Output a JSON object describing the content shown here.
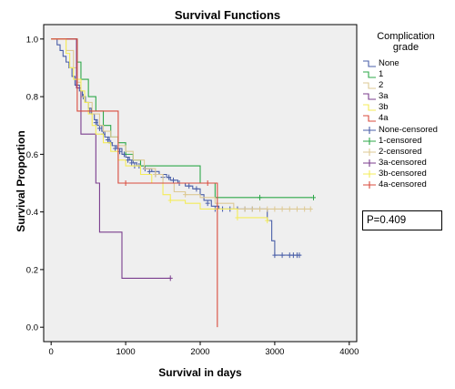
{
  "chart_data": {
    "type": "line",
    "title": "Survival Functions",
    "xlabel": "Survival in days",
    "ylabel": "Survival Proportion",
    "xlim": [
      -100,
      4100
    ],
    "ylim": [
      -0.05,
      1.05
    ],
    "x_ticks": [
      "0",
      "1000",
      "2000",
      "3000",
      "4000"
    ],
    "x_tick_values": [
      0,
      1000,
      2000,
      3000,
      4000
    ],
    "y_ticks": [
      "0.0",
      "0.2",
      "0.4",
      "0.6",
      "0.8",
      "1.0"
    ],
    "y_tick_values": [
      0.0,
      0.2,
      0.4,
      0.6,
      0.8,
      1.0
    ],
    "legend_title": [
      "Complication",
      "grade"
    ],
    "legend_position": "right",
    "background": "#efefef",
    "series": [
      {
        "name": "None",
        "color": "#4a5fa8",
        "steps": [
          [
            0,
            1.0
          ],
          [
            80,
            0.98
          ],
          [
            120,
            0.96
          ],
          [
            160,
            0.94
          ],
          [
            200,
            0.92
          ],
          [
            240,
            0.9
          ],
          [
            280,
            0.87
          ],
          [
            320,
            0.84
          ],
          [
            380,
            0.82
          ],
          [
            420,
            0.8
          ],
          [
            460,
            0.78
          ],
          [
            500,
            0.76
          ],
          [
            540,
            0.74
          ],
          [
            580,
            0.72
          ],
          [
            620,
            0.7
          ],
          [
            680,
            0.68
          ],
          [
            720,
            0.66
          ],
          [
            780,
            0.64
          ],
          [
            820,
            0.63
          ],
          [
            880,
            0.62
          ],
          [
            950,
            0.6
          ],
          [
            1000,
            0.59
          ],
          [
            1050,
            0.58
          ],
          [
            1100,
            0.57
          ],
          [
            1150,
            0.56
          ],
          [
            1250,
            0.55
          ],
          [
            1350,
            0.54
          ],
          [
            1450,
            0.53
          ],
          [
            1550,
            0.52
          ],
          [
            1600,
            0.51
          ],
          [
            1700,
            0.5
          ],
          [
            1800,
            0.49
          ],
          [
            1900,
            0.48
          ],
          [
            2000,
            0.46
          ],
          [
            2050,
            0.44
          ],
          [
            2150,
            0.42
          ],
          [
            2250,
            0.41
          ],
          [
            2900,
            0.37
          ],
          [
            2960,
            0.3
          ],
          [
            3000,
            0.25
          ],
          [
            3350,
            0.25
          ]
        ],
        "censored": [
          [
            430,
            0.8
          ],
          [
            520,
            0.75
          ],
          [
            600,
            0.71
          ],
          [
            650,
            0.69
          ],
          [
            700,
            0.67
          ],
          [
            760,
            0.65
          ],
          [
            800,
            0.64
          ],
          [
            860,
            0.62
          ],
          [
            920,
            0.61
          ],
          [
            980,
            0.6
          ],
          [
            1030,
            0.58
          ],
          [
            1080,
            0.57
          ],
          [
            1120,
            0.56
          ],
          [
            1180,
            0.56
          ],
          [
            1260,
            0.55
          ],
          [
            1320,
            0.54
          ],
          [
            1400,
            0.53
          ],
          [
            1500,
            0.52
          ],
          [
            1580,
            0.52
          ],
          [
            1640,
            0.51
          ],
          [
            1720,
            0.5
          ],
          [
            1850,
            0.49
          ],
          [
            1950,
            0.48
          ],
          [
            2100,
            0.43
          ],
          [
            2200,
            0.41
          ],
          [
            2300,
            0.41
          ],
          [
            2400,
            0.41
          ],
          [
            2500,
            0.41
          ],
          [
            2600,
            0.41
          ],
          [
            2700,
            0.41
          ],
          [
            2800,
            0.41
          ],
          [
            3000,
            0.25
          ],
          [
            3100,
            0.25
          ],
          [
            3200,
            0.25
          ],
          [
            3250,
            0.25
          ],
          [
            3300,
            0.25
          ],
          [
            3330,
            0.25
          ]
        ]
      },
      {
        "name": "1",
        "color": "#2ea84a",
        "steps": [
          [
            0,
            1.0
          ],
          [
            350,
            0.92
          ],
          [
            400,
            0.86
          ],
          [
            500,
            0.8
          ],
          [
            600,
            0.75
          ],
          [
            700,
            0.7
          ],
          [
            800,
            0.66
          ],
          [
            900,
            0.64
          ],
          [
            1000,
            0.6
          ],
          [
            1100,
            0.58
          ],
          [
            1200,
            0.56
          ],
          [
            1650,
            0.56
          ],
          [
            2000,
            0.5
          ],
          [
            2200,
            0.45
          ],
          [
            3500,
            0.45
          ]
        ],
        "censored": [
          [
            1200,
            0.56
          ],
          [
            2800,
            0.45
          ],
          [
            3520,
            0.45
          ]
        ]
      },
      {
        "name": "2",
        "color": "#ddc994",
        "steps": [
          [
            0,
            1.0
          ],
          [
            200,
            0.96
          ],
          [
            300,
            0.9
          ],
          [
            350,
            0.85
          ],
          [
            400,
            0.8
          ],
          [
            450,
            0.78
          ],
          [
            550,
            0.74
          ],
          [
            650,
            0.7
          ],
          [
            700,
            0.68
          ],
          [
            800,
            0.66
          ],
          [
            900,
            0.63
          ],
          [
            1000,
            0.61
          ],
          [
            1100,
            0.58
          ],
          [
            1250,
            0.55
          ],
          [
            1400,
            0.53
          ],
          [
            1500,
            0.5
          ],
          [
            1650,
            0.47
          ],
          [
            1800,
            0.46
          ],
          [
            2000,
            0.45
          ],
          [
            2200,
            0.43
          ],
          [
            2450,
            0.41
          ],
          [
            3500,
            0.41
          ]
        ],
        "censored": [
          [
            1400,
            0.53
          ],
          [
            1800,
            0.46
          ],
          [
            2600,
            0.41
          ],
          [
            2700,
            0.41
          ],
          [
            2800,
            0.41
          ],
          [
            2900,
            0.41
          ],
          [
            3000,
            0.41
          ],
          [
            3100,
            0.41
          ],
          [
            3200,
            0.41
          ],
          [
            3300,
            0.41
          ],
          [
            3400,
            0.41
          ],
          [
            3480,
            0.41
          ]
        ]
      },
      {
        "name": "3a",
        "color": "#7b3e8e",
        "steps": [
          [
            0,
            1.0
          ],
          [
            340,
            0.83
          ],
          [
            400,
            0.67
          ],
          [
            600,
            0.5
          ],
          [
            650,
            0.33
          ],
          [
            950,
            0.17
          ],
          [
            1600,
            0.17
          ]
        ],
        "censored": [
          [
            1600,
            0.17
          ]
        ]
      },
      {
        "name": "3b",
        "color": "#f4ec5a",
        "steps": [
          [
            0,
            1.0
          ],
          [
            200,
            0.95
          ],
          [
            250,
            0.9
          ],
          [
            300,
            0.86
          ],
          [
            400,
            0.82
          ],
          [
            450,
            0.78
          ],
          [
            500,
            0.74
          ],
          [
            550,
            0.7
          ],
          [
            600,
            0.67
          ],
          [
            700,
            0.64
          ],
          [
            800,
            0.61
          ],
          [
            900,
            0.58
          ],
          [
            1000,
            0.56
          ],
          [
            1200,
            0.53
          ],
          [
            1350,
            0.5
          ],
          [
            1500,
            0.46
          ],
          [
            1600,
            0.44
          ],
          [
            1800,
            0.43
          ],
          [
            2000,
            0.41
          ],
          [
            2500,
            0.38
          ],
          [
            2900,
            0.37
          ]
        ],
        "censored": [
          [
            1600,
            0.44
          ],
          [
            2500,
            0.38
          ],
          [
            2900,
            0.37
          ]
        ]
      },
      {
        "name": "4a",
        "color": "#d94b3e",
        "steps": [
          [
            0,
            1.0
          ],
          [
            350,
            0.75
          ],
          [
            850,
            0.75
          ],
          [
            900,
            0.5
          ],
          [
            2200,
            0.5
          ],
          [
            2230,
            0.0
          ]
        ],
        "censored": [
          [
            1000,
            0.5
          ],
          [
            2100,
            0.5
          ]
        ]
      }
    ],
    "legend_entries": [
      "None",
      "1",
      "2",
      "3a",
      "3b",
      "4a",
      "None-censored",
      "1-censored",
      "2-censored",
      "3a-censored",
      "3b-censored",
      "4a-censored"
    ],
    "annotation": "P=0.409"
  }
}
